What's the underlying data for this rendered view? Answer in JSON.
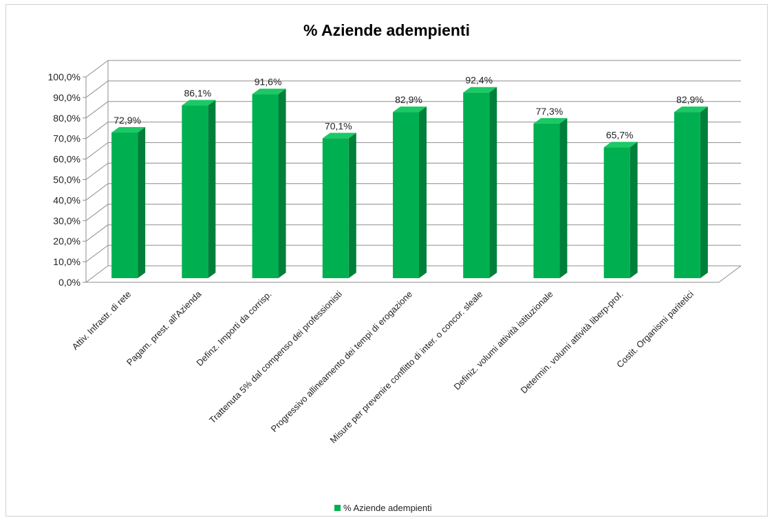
{
  "chart_data": {
    "type": "bar",
    "title": "% Aziende adempienti",
    "categories": [
      "Attiv. Infrastr. di rete",
      "Pagam. prest. all'Azienda",
      "Definz. Importi da corrisp.",
      "Trattenuta 5% dal compenso dei professionisti",
      "Progressivo allineamento dei tempi di erogazione",
      "Misure per prevenire conflitto di inter. o concor. sleale",
      "Definiz. volumi attività istituzionale",
      "Determin. volumi attività liberp-prof.",
      "Costit. Organismi paritetici"
    ],
    "series": [
      {
        "name": "% Aziende adempienti",
        "values": [
          72.9,
          86.1,
          91.6,
          70.1,
          82.9,
          92.4,
          77.3,
          65.7,
          82.9
        ],
        "labels": [
          "72,9%",
          "86,1%",
          "91,6%",
          "70,1%",
          "82,9%",
          "92,4%",
          "77,3%",
          "65,7%",
          "82,9%"
        ]
      }
    ],
    "ylim": [
      0,
      100
    ],
    "yticks": [
      "0,0%",
      "10,0%",
      "20,0%",
      "30,0%",
      "40,0%",
      "50,0%",
      "60,0%",
      "70,0%",
      "80,0%",
      "90,0%",
      "100,0%"
    ],
    "grid": true,
    "legend_position": "bottom",
    "style": "3d",
    "colors": {
      "bar_front": "#00b050",
      "bar_side": "#00803a",
      "bar_top": "#1bc965",
      "grid": "#8c8c8c"
    }
  }
}
